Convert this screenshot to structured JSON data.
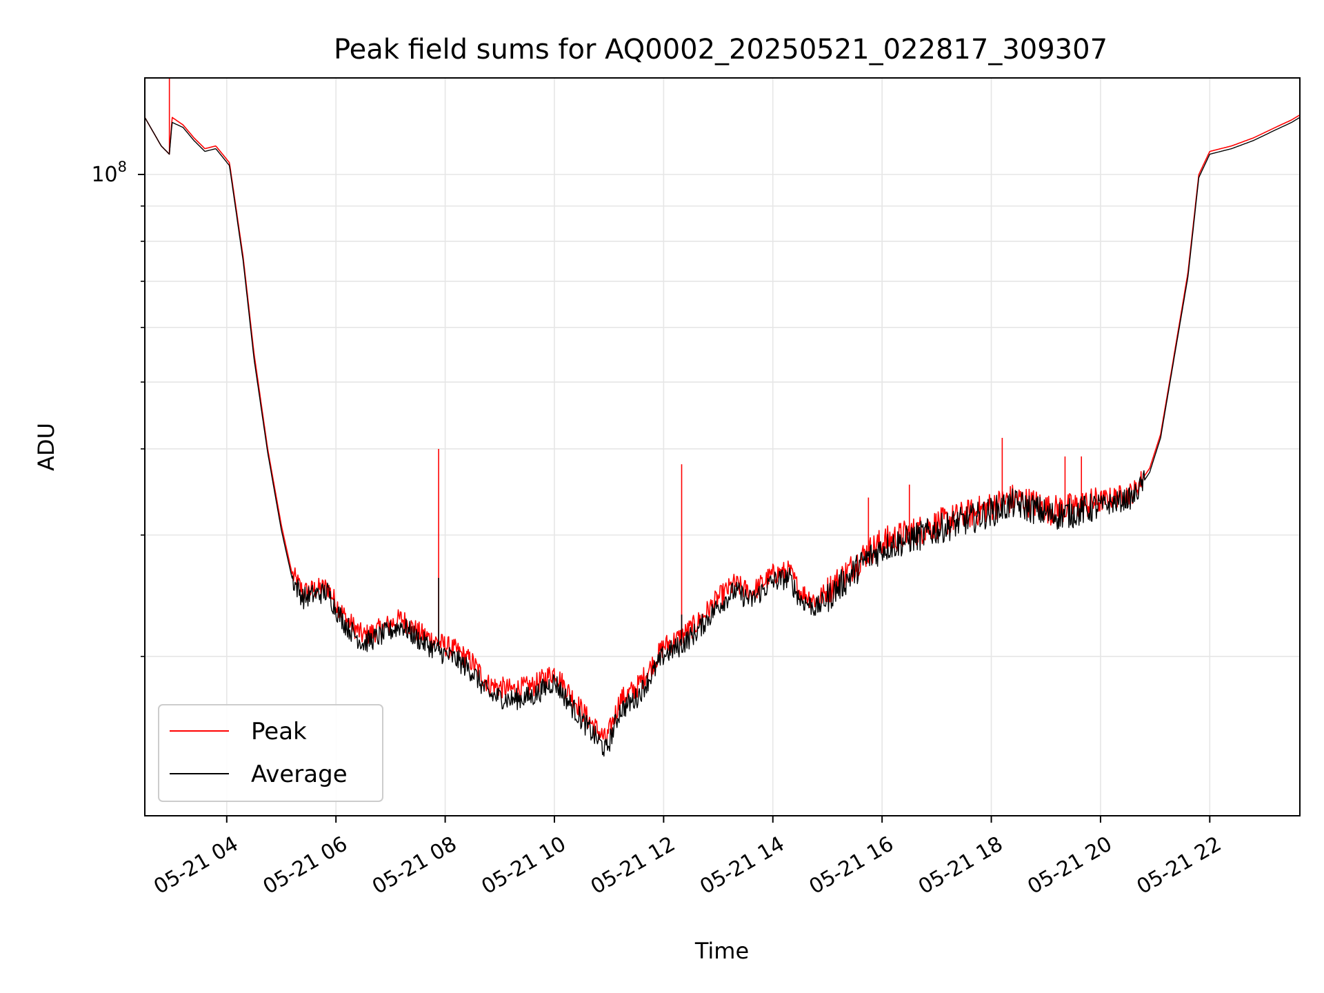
{
  "chart_data": {
    "type": "line",
    "title": "Peak field sums for AQ0002_20250521_022817_309307",
    "xlabel": "Time",
    "ylabel": "ADU",
    "x_unit": "hours on 2025-05-21",
    "xlim": [
      2.5,
      23.65
    ],
    "ylim_log10": [
      7.07,
      8.14
    ],
    "y_scale": "log",
    "grid": true,
    "legend_position": "lower-left",
    "x_ticks": [
      {
        "value": 4,
        "label": "05-21 04"
      },
      {
        "value": 6,
        "label": "05-21 06"
      },
      {
        "value": 8,
        "label": "05-21 08"
      },
      {
        "value": 10,
        "label": "05-21 10"
      },
      {
        "value": 12,
        "label": "05-21 12"
      },
      {
        "value": 14,
        "label": "05-21 14"
      },
      {
        "value": 16,
        "label": "05-21 16"
      },
      {
        "value": 18,
        "label": "05-21 18"
      },
      {
        "value": 20,
        "label": "05-21 20"
      },
      {
        "value": 22,
        "label": "05-21 22"
      }
    ],
    "y_major_ticks": [
      {
        "value": 100000000,
        "base": "10",
        "exponent": "8"
      }
    ],
    "y_minor_ticks": [
      20000000,
      30000000,
      40000000,
      50000000,
      60000000,
      70000000,
      80000000,
      90000000
    ],
    "colors": {
      "peak": "#ff0000",
      "average": "#000000",
      "grid": "#e6e6e6"
    },
    "series": [
      {
        "name": "Peak",
        "color": "#ff0000",
        "points": [
          [
            2.5,
            121000000
          ],
          [
            2.8,
            110000000
          ],
          [
            2.95,
            107000000
          ],
          [
            3.0,
            121000000
          ],
          [
            3.2,
            118000000
          ],
          [
            3.4,
            113000000
          ],
          [
            3.6,
            109000000
          ],
          [
            3.8,
            110000000
          ],
          [
            4.05,
            104000000
          ],
          [
            4.3,
            76000000
          ],
          [
            4.5,
            55000000
          ],
          [
            4.75,
            40000000
          ],
          [
            5.0,
            31000000
          ],
          [
            5.2,
            26300000
          ],
          [
            5.4,
            24800000
          ],
          [
            5.6,
            25000000
          ],
          [
            5.85,
            25200000
          ],
          [
            6.0,
            23900000
          ],
          [
            6.2,
            22600000
          ],
          [
            6.5,
            21400000
          ],
          [
            6.8,
            21900000
          ],
          [
            7.2,
            22700000
          ],
          [
            7.5,
            21700000
          ],
          [
            7.85,
            21000000
          ],
          [
            8.2,
            20400000
          ],
          [
            8.5,
            19600000
          ],
          [
            8.8,
            18200000
          ],
          [
            9.2,
            17900000
          ],
          [
            9.6,
            18100000
          ],
          [
            10.0,
            19000000
          ],
          [
            10.3,
            17600000
          ],
          [
            10.6,
            16300000
          ],
          [
            10.95,
            15100000
          ],
          [
            11.2,
            17300000
          ],
          [
            11.5,
            18000000
          ],
          [
            11.8,
            19500000
          ],
          [
            12.0,
            20700000
          ],
          [
            12.3,
            21300000
          ],
          [
            12.6,
            22300000
          ],
          [
            13.0,
            24300000
          ],
          [
            13.3,
            25500000
          ],
          [
            13.6,
            24700000
          ],
          [
            14.0,
            26300000
          ],
          [
            14.3,
            26600000
          ],
          [
            14.5,
            24800000
          ],
          [
            14.8,
            24100000
          ],
          [
            15.0,
            24900000
          ],
          [
            15.4,
            26700000
          ],
          [
            15.7,
            28200000
          ],
          [
            16.0,
            29300000
          ],
          [
            16.4,
            30000000
          ],
          [
            16.8,
            30700000
          ],
          [
            17.2,
            31500000
          ],
          [
            17.6,
            32200000
          ],
          [
            18.0,
            33000000
          ],
          [
            18.4,
            33900000
          ],
          [
            18.8,
            33300000
          ],
          [
            19.1,
            32600000
          ],
          [
            19.5,
            32900000
          ],
          [
            19.9,
            33500000
          ],
          [
            20.3,
            34100000
          ],
          [
            20.6,
            34600000
          ],
          [
            20.9,
            37500000
          ],
          [
            21.1,
            42000000
          ],
          [
            21.3,
            52000000
          ],
          [
            21.6,
            72000000
          ],
          [
            21.8,
            100000000
          ],
          [
            22.0,
            108000000
          ],
          [
            22.4,
            110000000
          ],
          [
            22.8,
            113000000
          ],
          [
            23.2,
            117000000
          ],
          [
            23.5,
            120000000
          ],
          [
            23.65,
            122000000
          ]
        ]
      },
      {
        "name": "Average",
        "color": "#000000",
        "points": [
          [
            2.5,
            121000000
          ],
          [
            2.8,
            110000000
          ],
          [
            2.95,
            107000000
          ],
          [
            3.0,
            119000000
          ],
          [
            3.2,
            117000000
          ],
          [
            3.4,
            112000000
          ],
          [
            3.6,
            108000000
          ],
          [
            3.8,
            109000000
          ],
          [
            4.05,
            103000000
          ],
          [
            4.3,
            75000000
          ],
          [
            4.5,
            54000000
          ],
          [
            4.75,
            39500000
          ],
          [
            5.0,
            30500000
          ],
          [
            5.2,
            25900000
          ],
          [
            5.4,
            24300000
          ],
          [
            5.6,
            24600000
          ],
          [
            5.85,
            24800000
          ],
          [
            6.0,
            23400000
          ],
          [
            6.2,
            22100000
          ],
          [
            6.5,
            20900000
          ],
          [
            6.8,
            21400000
          ],
          [
            7.2,
            22200000
          ],
          [
            7.5,
            21200000
          ],
          [
            7.85,
            20400000
          ],
          [
            8.2,
            19800000
          ],
          [
            8.5,
            19000000
          ],
          [
            8.8,
            17600000
          ],
          [
            9.2,
            17300000
          ],
          [
            9.6,
            17500000
          ],
          [
            10.0,
            18400000
          ],
          [
            10.3,
            17000000
          ],
          [
            10.6,
            15800000
          ],
          [
            10.95,
            14600000
          ],
          [
            11.2,
            16700000
          ],
          [
            11.5,
            17400000
          ],
          [
            11.8,
            18900000
          ],
          [
            12.0,
            20100000
          ],
          [
            12.3,
            20700000
          ],
          [
            12.6,
            21700000
          ],
          [
            13.0,
            23700000
          ],
          [
            13.3,
            24900000
          ],
          [
            13.6,
            24100000
          ],
          [
            14.0,
            25700000
          ],
          [
            14.3,
            26000000
          ],
          [
            14.5,
            24200000
          ],
          [
            14.8,
            23500000
          ],
          [
            15.0,
            24300000
          ],
          [
            15.4,
            26100000
          ],
          [
            15.7,
            27600000
          ],
          [
            16.0,
            28700000
          ],
          [
            16.4,
            29400000
          ],
          [
            16.8,
            30100000
          ],
          [
            17.2,
            30900000
          ],
          [
            17.6,
            31600000
          ],
          [
            18.0,
            32400000
          ],
          [
            18.4,
            33300000
          ],
          [
            18.8,
            32700000
          ],
          [
            19.1,
            32000000
          ],
          [
            19.5,
            32300000
          ],
          [
            19.9,
            32900000
          ],
          [
            20.3,
            33500000
          ],
          [
            20.6,
            34000000
          ],
          [
            20.9,
            37000000
          ],
          [
            21.1,
            41500000
          ],
          [
            21.3,
            51500000
          ],
          [
            21.6,
            71000000
          ],
          [
            21.8,
            99000000
          ],
          [
            22.0,
            107000000
          ],
          [
            22.4,
            109000000
          ],
          [
            22.8,
            112000000
          ],
          [
            23.2,
            116000000
          ],
          [
            23.5,
            119000000
          ],
          [
            23.65,
            121000000
          ]
        ]
      }
    ],
    "spikes": [
      {
        "series": "Peak",
        "x": 2.95,
        "y": 145000000
      },
      {
        "series": "Peak",
        "x": 7.88,
        "y": 40000000
      },
      {
        "series": "Average",
        "x": 7.88,
        "y": 26000000
      },
      {
        "series": "Peak",
        "x": 12.33,
        "y": 38000000
      },
      {
        "series": "Average",
        "x": 12.33,
        "y": 23000000
      },
      {
        "series": "Peak",
        "x": 18.2,
        "y": 41500000
      },
      {
        "series": "Peak",
        "x": 19.35,
        "y": 39000000
      },
      {
        "series": "Peak",
        "x": 19.65,
        "y": 39000000
      },
      {
        "series": "Peak",
        "x": 15.75,
        "y": 34000000
      },
      {
        "series": "Peak",
        "x": 16.5,
        "y": 35500000
      }
    ]
  }
}
